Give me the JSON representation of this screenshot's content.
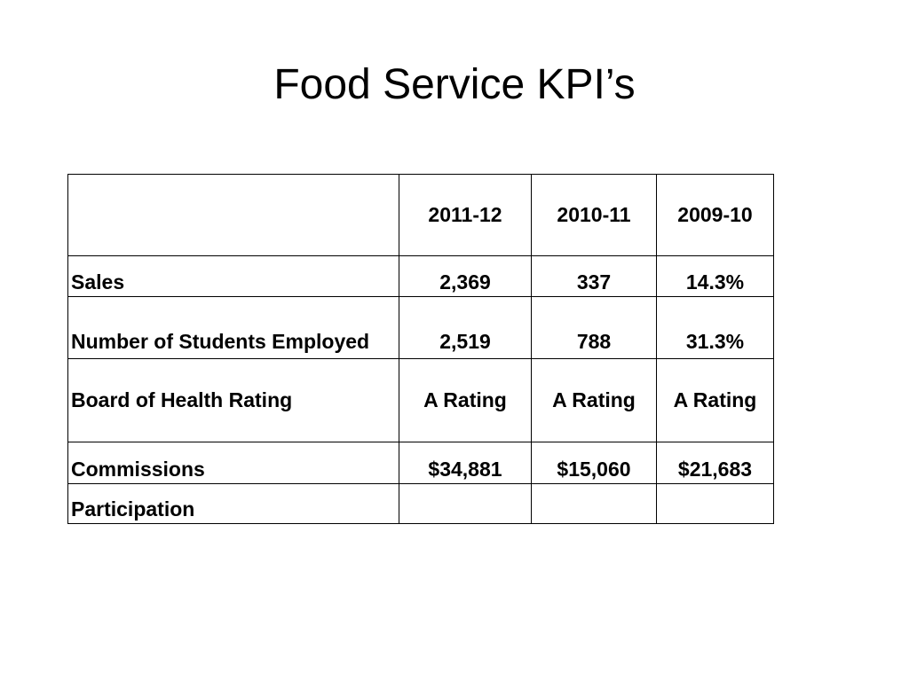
{
  "slide": {
    "title": "Food Service KPI’s"
  },
  "table": {
    "header": {
      "label": "",
      "years": [
        "2011-12",
        "2010-11",
        "2009-10"
      ]
    },
    "rows": [
      {
        "label": "Sales",
        "values": [
          "2,369",
          "337",
          "14.3%"
        ]
      },
      {
        "label": "Number of Students Employed",
        "values": [
          "2,519",
          "788",
          "31.3%"
        ]
      },
      {
        "label": "Board of Health Rating",
        "values": [
          "A Rating",
          "A Rating",
          "A Rating"
        ]
      },
      {
        "label": "Commissions",
        "values": [
          "$34,881",
          "$15,060",
          "$21,683"
        ]
      },
      {
        "label": "Participation",
        "values": [
          "",
          "",
          ""
        ]
      }
    ]
  }
}
